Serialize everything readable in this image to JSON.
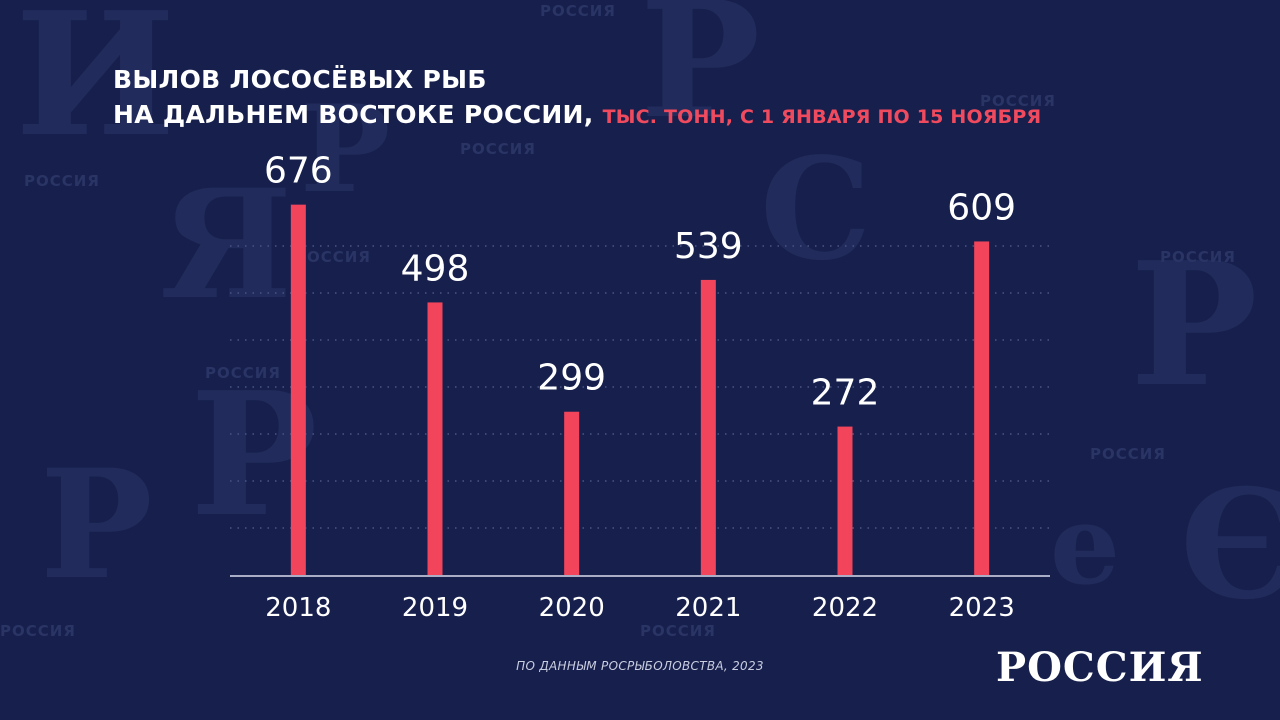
{
  "title": {
    "line1": "ВЫЛОВ ЛОСОСЁВЫХ РЫБ",
    "line2": "НА ДАЛЬНЕМ ВОСТОКЕ РОССИИ,",
    "subtitle": "ТЫС. ТОНН, С 1 ЯНВАРЯ ПО 15 НОЯБРЯ"
  },
  "source": "ПО ДАННЫМ РОСРЫБОЛОВСТВА, 2023",
  "logo": "РОССИЯ",
  "background_word": "РОССИЯ",
  "colors": {
    "background": "#17204d",
    "bar": "#f2455b",
    "text": "#ffffff",
    "accent": "#f04a5f",
    "grid": "#4b5584",
    "axis": "#a9aec6"
  },
  "chart_data": {
    "type": "bar",
    "categories": [
      "2018",
      "2019",
      "2020",
      "2021",
      "2022",
      "2023"
    ],
    "values": [
      676,
      498,
      299,
      539,
      272,
      609
    ],
    "ylabel": "тыс. тонн",
    "ylim": [
      0,
      750
    ],
    "grid": true,
    "data_labels": true
  }
}
